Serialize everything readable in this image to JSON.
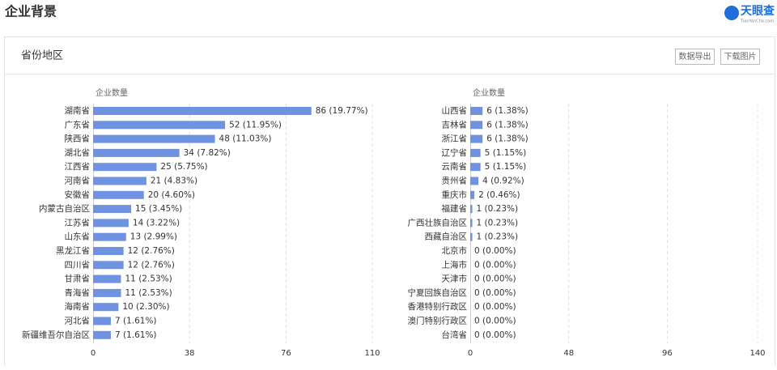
{
  "header": {
    "title": "企业背景",
    "logo": "天眼查",
    "logo_sub": "TianYanCha.com"
  },
  "panel": {
    "title": "省份地区",
    "buttons": [
      "数据导出",
      "下载图片"
    ]
  },
  "chart_data": [
    {
      "type": "bar",
      "orientation": "horizontal",
      "axis_label": "企业数量",
      "color": "#6f93e0",
      "grid": true,
      "categories": [
        "湖南省",
        "广东省",
        "陕西省",
        "湖北省",
        "江西省",
        "河南省",
        "安徽省",
        "内蒙古自治区",
        "江苏省",
        "山东省",
        "黑龙江省",
        "四川省",
        "甘肃省",
        "青海省",
        "海南省",
        "河北省",
        "新疆维吾尔自治区"
      ],
      "values": [
        86,
        52,
        48,
        34,
        25,
        21,
        20,
        15,
        14,
        13,
        12,
        12,
        11,
        11,
        10,
        7,
        7
      ],
      "value_labels": [
        "86 (19.77%)",
        "52 (11.95%)",
        "48 (11.03%)",
        "34 (7.82%)",
        "25 (5.75%)",
        "21 (4.83%)",
        "20 (4.60%)",
        "15 (3.45%)",
        "14 (3.22%)",
        "13 (2.99%)",
        "12 (2.76%)",
        "12 (2.76%)",
        "11 (2.53%)",
        "11 (2.53%)",
        "10 (2.30%)",
        "7 (1.61%)",
        "7 (1.61%)"
      ],
      "xlim": [
        0,
        110
      ],
      "xticks": [
        0,
        38,
        76,
        110
      ]
    },
    {
      "type": "bar",
      "orientation": "horizontal",
      "axis_label": "企业数量",
      "color": "#6f93e0",
      "grid": true,
      "categories": [
        "山西省",
        "吉林省",
        "浙江省",
        "辽宁省",
        "云南省",
        "贵州省",
        "重庆市",
        "福建省",
        "广西壮族自治区",
        "西藏自治区",
        "北京市",
        "上海市",
        "天津市",
        "宁夏回族自治区",
        "香港特别行政区",
        "澳门特别行政区",
        "台湾省"
      ],
      "values": [
        6,
        6,
        6,
        5,
        5,
        4,
        2,
        1,
        1,
        1,
        0,
        0,
        0,
        0,
        0,
        0,
        0
      ],
      "value_labels": [
        "6 (1.38%)",
        "6 (1.38%)",
        "6 (1.38%)",
        "5 (1.15%)",
        "5 (1.15%)",
        "4 (0.92%)",
        "2 (0.46%)",
        "1 (0.23%)",
        "1 (0.23%)",
        "1 (0.23%)",
        "0 (0.00%)",
        "0 (0.00%)",
        "0 (0.00%)",
        "0 (0.00%)",
        "0 (0.00%)",
        "0 (0.00%)",
        "0 (0.00%)"
      ],
      "xlim": [
        0,
        140
      ],
      "xticks": [
        0,
        48,
        96,
        140
      ]
    }
  ]
}
